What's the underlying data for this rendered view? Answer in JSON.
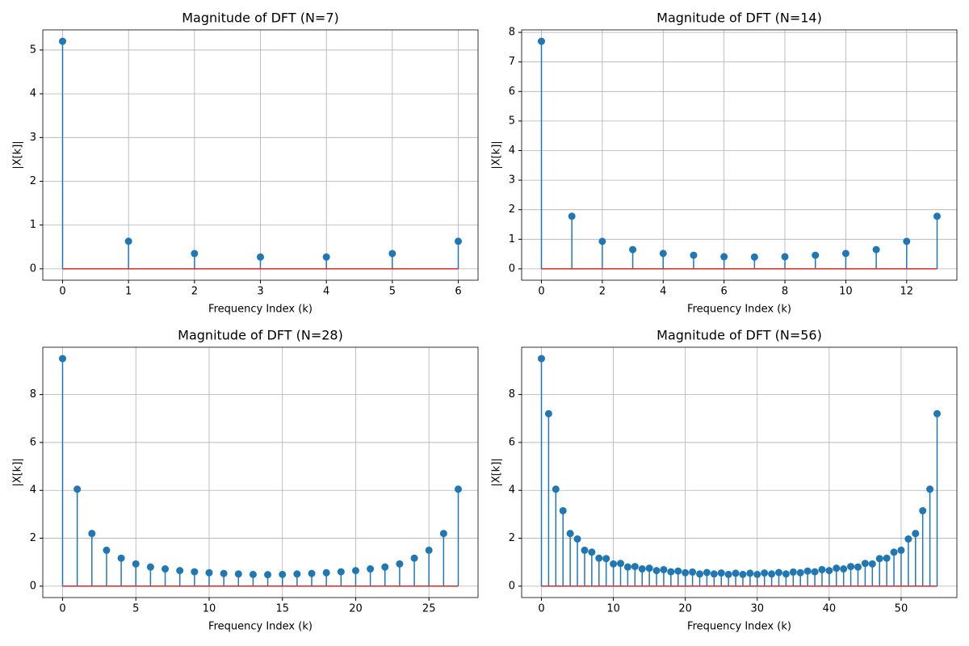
{
  "chart_data": [
    {
      "type": "stem",
      "title": "Magnitude of DFT (N=7)",
      "xlabel": "Frequency Index (k)",
      "ylabel": "|X[k]|",
      "x": [
        0,
        1,
        2,
        3,
        4,
        5,
        6
      ],
      "values": [
        5.2,
        0.63,
        0.35,
        0.27,
        0.27,
        0.35,
        0.63
      ],
      "color": "#1f77b4",
      "baseline": 0,
      "baseline_color": "#d62728",
      "xlim": [
        -0.3,
        6.3
      ],
      "xticks": [
        0,
        1,
        2,
        3,
        4,
        5,
        6
      ],
      "ylim": [
        -0.26,
        5.46
      ],
      "yticks": [
        0,
        1,
        2,
        3,
        4,
        5
      ],
      "grid": true
    },
    {
      "type": "stem",
      "title": "Magnitude of DFT (N=14)",
      "xlabel": "Frequency Index (k)",
      "ylabel": "|X[k]|",
      "x": [
        0,
        1,
        2,
        3,
        4,
        5,
        6,
        7,
        8,
        9,
        10,
        11,
        12,
        13
      ],
      "values": [
        7.7,
        1.78,
        0.93,
        0.65,
        0.52,
        0.46,
        0.41,
        0.4,
        0.41,
        0.46,
        0.52,
        0.65,
        0.93,
        1.78
      ],
      "color": "#1f77b4",
      "baseline": 0,
      "baseline_color": "#d62728",
      "xlim": [
        -0.65,
        13.65
      ],
      "xticks": [
        0,
        2,
        4,
        6,
        8,
        10,
        12
      ],
      "ylim": [
        -0.385,
        8.085
      ],
      "yticks": [
        0,
        1,
        2,
        3,
        4,
        5,
        6,
        7,
        8
      ],
      "grid": true
    },
    {
      "type": "stem",
      "title": "Magnitude of DFT (N=28)",
      "xlabel": "Frequency Index (k)",
      "ylabel": "|X[k]|",
      "x": [
        0,
        1,
        2,
        3,
        4,
        5,
        6,
        7,
        8,
        9,
        10,
        11,
        12,
        13,
        14,
        15,
        16,
        17,
        18,
        19,
        20,
        21,
        22,
        23,
        24,
        25,
        26,
        27
      ],
      "values": [
        9.5,
        4.05,
        2.2,
        1.5,
        1.17,
        0.93,
        0.8,
        0.72,
        0.65,
        0.6,
        0.56,
        0.53,
        0.51,
        0.49,
        0.48,
        0.49,
        0.51,
        0.53,
        0.56,
        0.6,
        0.65,
        0.72,
        0.8,
        0.93,
        1.17,
        1.5,
        2.2,
        4.05
      ],
      "color": "#1f77b4",
      "baseline": 0,
      "baseline_color": "#d62728",
      "xlim": [
        -1.35,
        28.35
      ],
      "xticks": [
        0,
        5,
        10,
        15,
        20,
        25
      ],
      "ylim": [
        -0.475,
        9.975
      ],
      "yticks": [
        0,
        2,
        4,
        6,
        8
      ],
      "grid": true
    },
    {
      "type": "stem",
      "title": "Magnitude of DFT (N=56)",
      "xlabel": "Frequency Index (k)",
      "ylabel": "|X[k]|",
      "x": [
        0,
        1,
        2,
        3,
        4,
        5,
        6,
        7,
        8,
        9,
        10,
        11,
        12,
        13,
        14,
        15,
        16,
        17,
        18,
        19,
        20,
        21,
        22,
        23,
        24,
        25,
        26,
        27,
        28,
        29,
        30,
        31,
        32,
        33,
        34,
        35,
        36,
        37,
        38,
        39,
        40,
        41,
        42,
        43,
        44,
        45,
        46,
        47,
        48,
        49,
        50,
        51,
        52,
        53,
        54,
        55
      ],
      "values": [
        9.5,
        7.2,
        4.05,
        3.15,
        2.2,
        1.97,
        1.5,
        1.42,
        1.17,
        1.15,
        0.93,
        0.95,
        0.8,
        0.82,
        0.72,
        0.75,
        0.65,
        0.69,
        0.6,
        0.63,
        0.56,
        0.59,
        0.51,
        0.57,
        0.51,
        0.55,
        0.49,
        0.54,
        0.49,
        0.54,
        0.49,
        0.55,
        0.51,
        0.57,
        0.51,
        0.59,
        0.56,
        0.63,
        0.6,
        0.69,
        0.65,
        0.75,
        0.72,
        0.82,
        0.8,
        0.95,
        0.93,
        1.15,
        1.17,
        1.42,
        1.5,
        1.97,
        2.2,
        3.15,
        4.05,
        7.2
      ],
      "color": "#1f77b4",
      "baseline": 0,
      "baseline_color": "#d62728",
      "xlim": [
        -2.75,
        57.75
      ],
      "xticks": [
        0,
        10,
        20,
        30,
        40,
        50
      ],
      "ylim": [
        -0.475,
        9.975
      ],
      "yticks": [
        0,
        2,
        4,
        6,
        8
      ],
      "grid": true
    }
  ]
}
